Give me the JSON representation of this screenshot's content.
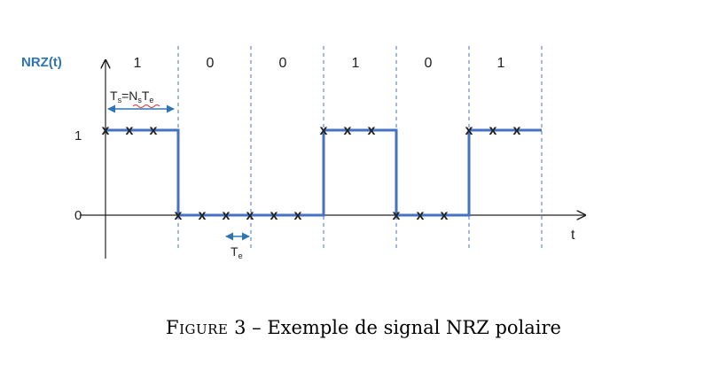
{
  "diagram": {
    "y_axis_label": "NRZ(t)",
    "x_axis_label": "t",
    "y_tick_labels": [
      "1",
      "0"
    ],
    "bits": [
      "1",
      "0",
      "0",
      "1",
      "0",
      "1"
    ],
    "ts_annotation": {
      "T": "T",
      "s": "s",
      "eq": "=N",
      "n": "s",
      "T2": "T",
      "e": "e"
    },
    "te_annotation": {
      "T": "T",
      "e": "e"
    },
    "sample_mark": "x",
    "samples_per_bit": 3,
    "colors": {
      "signal": "#4472c4",
      "axis_label": "#2e75b6",
      "dashed": "#4472c4",
      "annotation": "#2e75b6"
    }
  },
  "caption": {
    "figure_word": "Figure",
    "number": "3",
    "separator": "–",
    "text": "Exemple de signal NRZ polaire"
  }
}
